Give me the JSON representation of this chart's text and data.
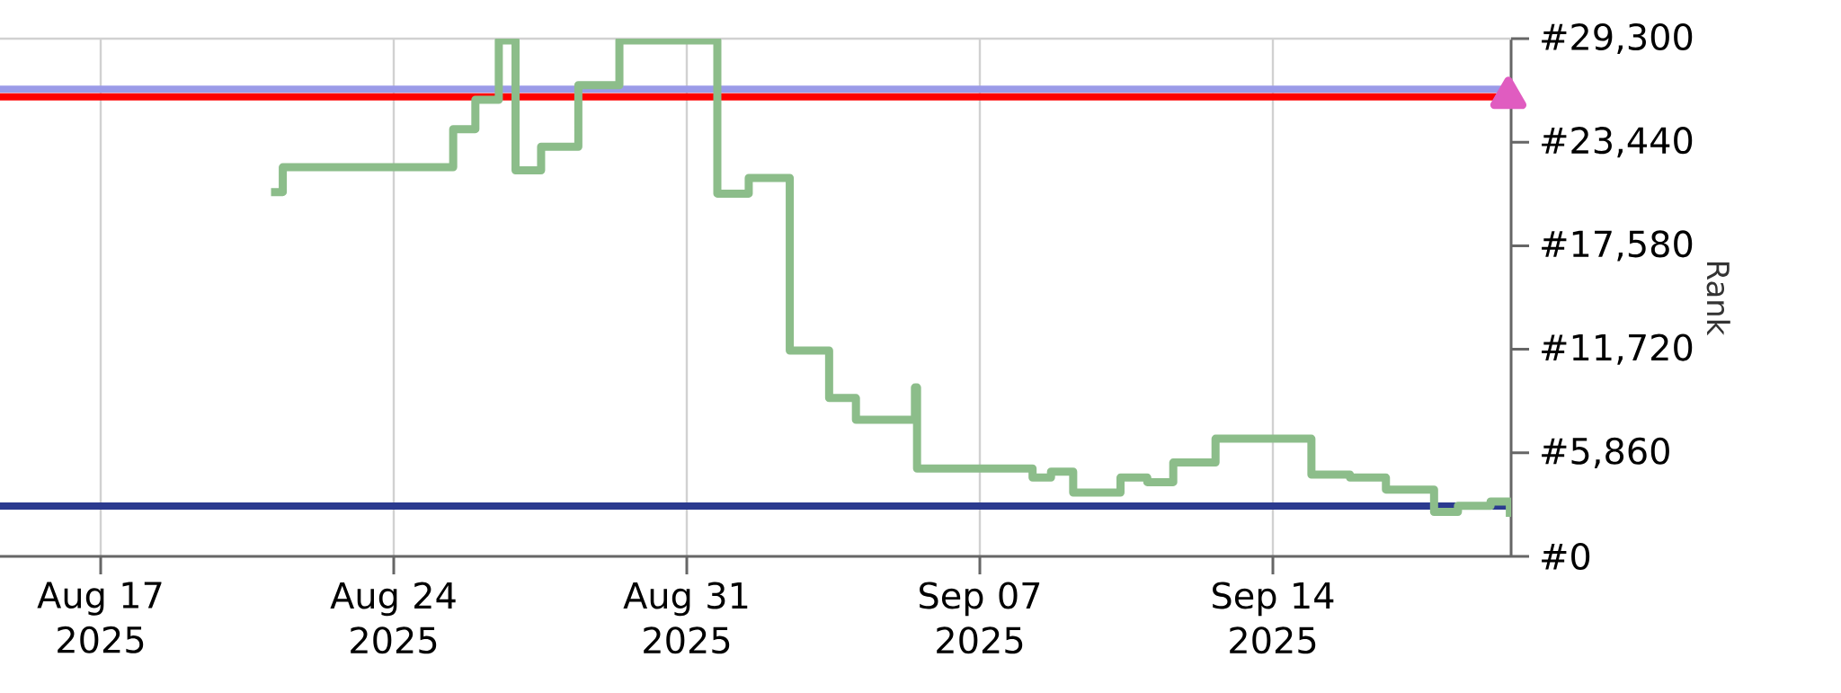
{
  "chart_data": {
    "type": "step",
    "ylabel": "Rank",
    "xlim": [
      "2025-08-14T14:17",
      "2025-09-19T16:34"
    ],
    "xticks": [
      {
        "value": "2025-08-17",
        "label": "Aug 17 2025"
      },
      {
        "value": "2025-08-24",
        "label": "Aug 24 2025"
      },
      {
        "value": "2025-08-31",
        "label": "Aug 31 2025"
      },
      {
        "value": "2025-09-07",
        "label": "Sep 07 2025"
      },
      {
        "value": "2025-09-14",
        "label": "Sep 14 2025"
      }
    ],
    "ylim": [
      0,
      29300
    ],
    "yticks": [
      {
        "value": 0,
        "label": "#0"
      },
      {
        "value": 5860,
        "label": "#5,860"
      },
      {
        "value": 11720,
        "label": "#11,720"
      },
      {
        "value": 17580,
        "label": "#17,580"
      },
      {
        "value": 23440,
        "label": "#23,440"
      },
      {
        "value": 29300,
        "label": "#29,300"
      }
    ],
    "grid": "x",
    "ref_lines": [
      {
        "axis": "y",
        "value": 26440,
        "color": "#9b9be8"
      },
      {
        "axis": "y",
        "value": 26000,
        "color": "#ff0000"
      },
      {
        "axis": "y",
        "value": 2850,
        "color": "#2b3a8f"
      }
    ],
    "series": [
      {
        "color": "#8cbd8a",
        "x": [
          "2025-08-21T01:40",
          "2025-08-21T08:24",
          "2025-08-25T10:05",
          "2025-08-25T22:48",
          "2025-08-26T12:14",
          "2025-08-26T21:50",
          "2025-08-27T12:29",
          "2025-08-28T09:50",
          "2025-08-29T09:22",
          "2025-08-31T17:31",
          "2025-09-01T11:31",
          "2025-09-02T11:02",
          "2025-09-03T09:36",
          "2025-09-04T00:58",
          "2025-09-05T10:48",
          "2025-09-05T12:00",
          "2025-09-08T06:14",
          "2025-09-08T16:48",
          "2025-09-09T05:31",
          "2025-09-10T08:38",
          "2025-09-11T00:00",
          "2025-09-11T14:53",
          "2025-09-12T15:07",
          "2025-09-14T22:05",
          "2025-09-15T20:10",
          "2025-09-16T16:48",
          "2025-09-17T20:24",
          "2025-09-18T10:05",
          "2025-09-19T04:48",
          "2025-09-19T15:50"
        ],
        "values": [
          20620,
          22020,
          24180,
          25840,
          29200,
          21850,
          23180,
          26670,
          29200,
          20530,
          21420,
          11650,
          8960,
          7730,
          9560,
          4970,
          4460,
          4800,
          3610,
          4460,
          4200,
          5310,
          6660,
          4630,
          4460,
          3780,
          2520,
          2860,
          3100,
          2240
        ]
      },
      {
        "type": "scatter",
        "marker": "triangle",
        "color": "#e05cc0",
        "x": [
          "2025-09-19T15:00"
        ],
        "values": [
          26000
        ]
      }
    ]
  }
}
